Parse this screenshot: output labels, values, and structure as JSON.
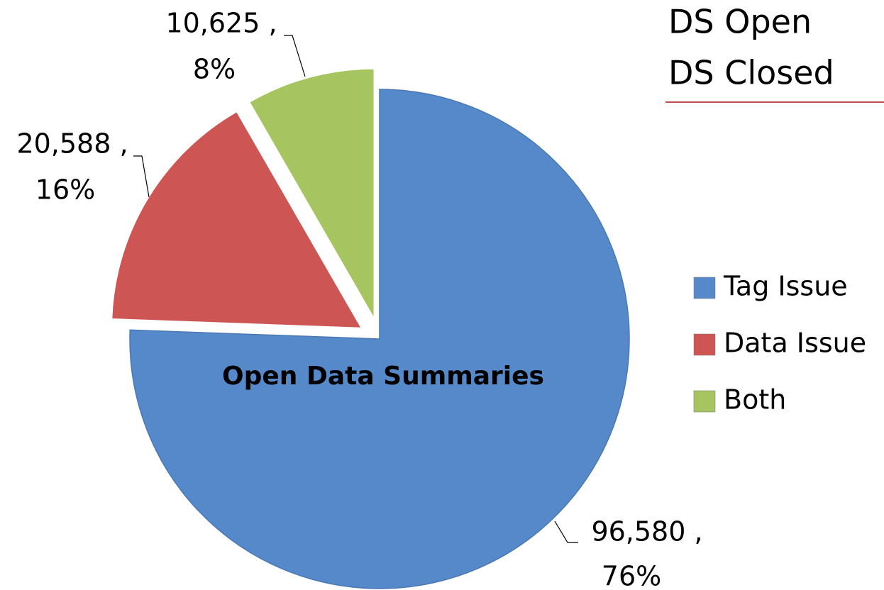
{
  "chart_data": {
    "type": "pie",
    "title": "Open Data Summaries",
    "tabs": [
      "DS Open",
      "DS Closed"
    ],
    "categories": [
      "Tag Issue",
      "Data Issue",
      "Both"
    ],
    "values": [
      96580,
      20588,
      10625
    ],
    "value_labels": [
      "96,580 ,",
      "20,588 ,",
      "10,625 ,"
    ],
    "percent_labels": [
      "76%",
      "16%",
      "8%"
    ],
    "colors": [
      "#5689c9",
      "#cd5654",
      "#a6c460"
    ],
    "legend": "right"
  }
}
